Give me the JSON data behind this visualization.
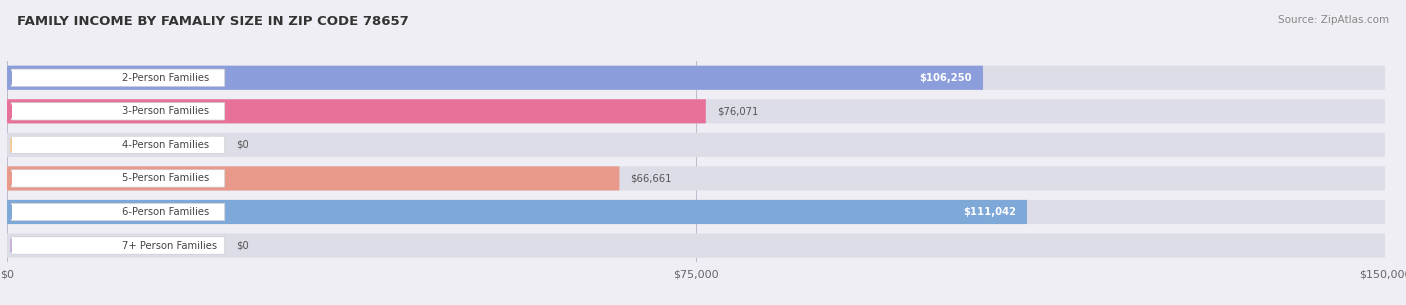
{
  "title": "FAMILY INCOME BY FAMALIY SIZE IN ZIP CODE 78657",
  "source": "Source: ZipAtlas.com",
  "categories": [
    "2-Person Families",
    "3-Person Families",
    "4-Person Families",
    "5-Person Families",
    "6-Person Families",
    "7+ Person Families"
  ],
  "values": [
    106250,
    76071,
    0,
    66661,
    111042,
    0
  ],
  "bar_colors": [
    "#8b9ddb",
    "#e8719a",
    "#f5c898",
    "#e8998a",
    "#7ea8d8",
    "#c8b2d8"
  ],
  "xmax": 150000,
  "xticks": [
    0,
    75000,
    150000
  ],
  "xticklabels": [
    "$0",
    "$75,000",
    "$150,000"
  ],
  "background_color": "#eeeef4",
  "bar_bg_color": "#dddde8",
  "title_color": "#333333",
  "value_labels": [
    "$106,250",
    "$76,071",
    "$0",
    "$66,661",
    "$111,042",
    "$0"
  ],
  "value_inside": [
    true,
    false,
    false,
    false,
    true,
    false
  ],
  "value_colors_inside": [
    "#ffffff",
    "#555555",
    "#555555",
    "#555555",
    "#ffffff",
    "#555555"
  ],
  "label_pill_color": "#ffffff",
  "label_text_color": "#444444",
  "gap_color": "#f5f5fa"
}
